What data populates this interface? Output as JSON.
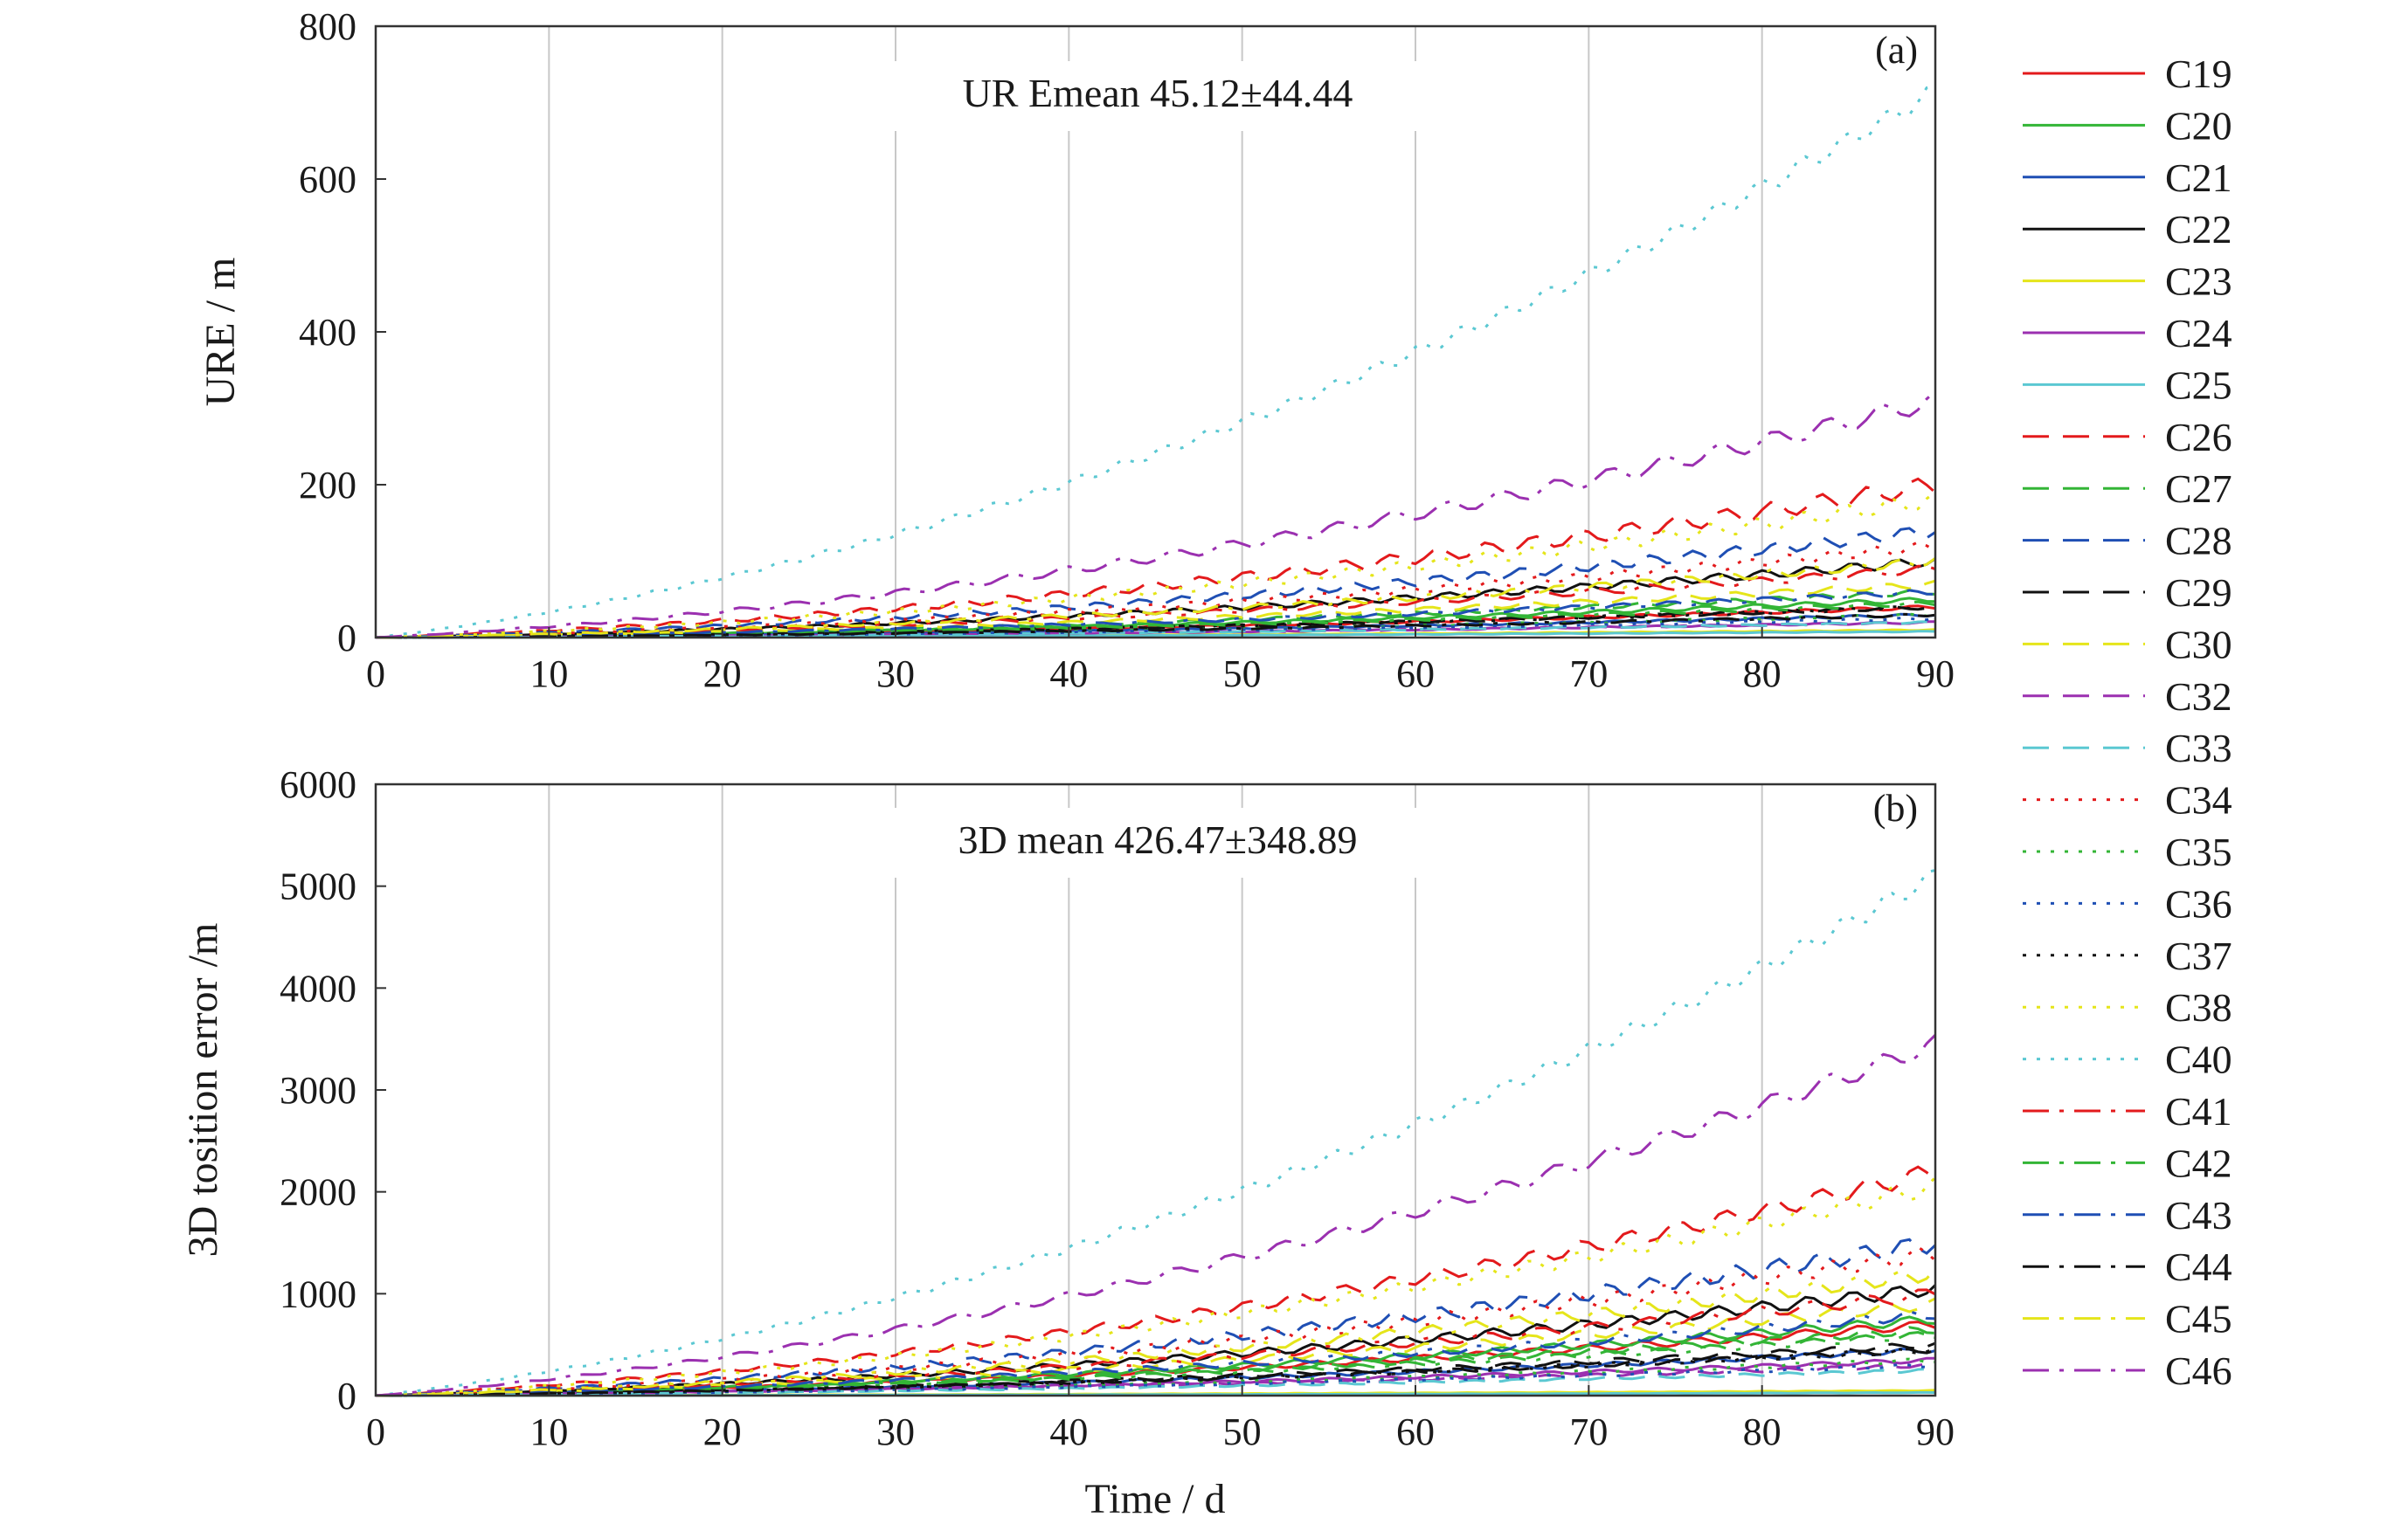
{
  "chart_data": {
    "type": "line",
    "legend_position": "right",
    "grid": true,
    "series_names": [
      "C19",
      "C20",
      "C21",
      "C22",
      "C23",
      "C24",
      "C25",
      "C26",
      "C27",
      "C28",
      "C29",
      "C30",
      "C32",
      "C33",
      "C34",
      "C35",
      "C36",
      "C37",
      "C38",
      "C40",
      "C41",
      "C42",
      "C43",
      "C44",
      "C45",
      "C46"
    ],
    "series_styles": [
      {
        "color": "#e31a1c",
        "dash": "solid"
      },
      {
        "color": "#33b536",
        "dash": "solid"
      },
      {
        "color": "#1f4fb4",
        "dash": "solid"
      },
      {
        "color": "#111111",
        "dash": "solid"
      },
      {
        "color": "#e5e51a",
        "dash": "solid"
      },
      {
        "color": "#9b30b0",
        "dash": "solid"
      },
      {
        "color": "#5bc8d2",
        "dash": "solid"
      },
      {
        "color": "#e31a1c",
        "dash": "dash"
      },
      {
        "color": "#33b536",
        "dash": "dash"
      },
      {
        "color": "#1f4fb4",
        "dash": "dash"
      },
      {
        "color": "#111111",
        "dash": "dash"
      },
      {
        "color": "#e5e51a",
        "dash": "dash"
      },
      {
        "color": "#9b30b0",
        "dash": "dash"
      },
      {
        "color": "#5bc8d2",
        "dash": "dash"
      },
      {
        "color": "#e31a1c",
        "dash": "dot"
      },
      {
        "color": "#33b536",
        "dash": "dot"
      },
      {
        "color": "#1f4fb4",
        "dash": "dot"
      },
      {
        "color": "#111111",
        "dash": "dot"
      },
      {
        "color": "#e5e51a",
        "dash": "dot"
      },
      {
        "color": "#5bc8d2",
        "dash": "dot"
      },
      {
        "color": "#e31a1c",
        "dash": "dashdot"
      },
      {
        "color": "#33b536",
        "dash": "dashdot"
      },
      {
        "color": "#1f4fb4",
        "dash": "dashdot"
      },
      {
        "color": "#111111",
        "dash": "dashdot"
      },
      {
        "color": "#e5e51a",
        "dash": "dashdot"
      },
      {
        "color": "#9b30b0",
        "dash": "dashdot"
      }
    ],
    "panels": [
      {
        "panel_label": "(a)",
        "annotation": "UR Emean 45.12±44.44",
        "ylabel": "URE / m",
        "xlabel": "",
        "xlim": [
          0,
          90
        ],
        "ylim": [
          0,
          800
        ],
        "xticks": [
          "0",
          "10",
          "20",
          "30",
          "40",
          "50",
          "60",
          "70",
          "80",
          "90"
        ],
        "yticks": [
          "0",
          "200",
          "400",
          "600",
          "800"
        ],
        "x": [
          0,
          90
        ],
        "final_values": [
          40,
          50,
          30,
          100,
          10,
          20,
          8,
          200,
          60,
          140,
          40,
          70,
          20,
          20,
          120,
          30,
          25,
          40,
          180,
          715,
          90,
          45,
          60,
          30,
          100,
          310
        ]
      },
      {
        "panel_label": "(b)",
        "annotation": "3D mean 426.47±348.89",
        "ylabel": "3D tosition error /m",
        "xlabel": "Time / d",
        "xlim": [
          0,
          90
        ],
        "ylim": [
          0,
          6000
        ],
        "xticks": [
          "0",
          "10",
          "20",
          "30",
          "40",
          "50",
          "60",
          "70",
          "80",
          "90"
        ],
        "yticks": [
          "0",
          "1000",
          "2000",
          "3000",
          "4000",
          "5000",
          "6000"
        ],
        "x": [
          0,
          90
        ],
        "final_values": [
          700,
          750,
          450,
          1050,
          50,
          350,
          30,
          2200,
          650,
          1500,
          500,
          900,
          300,
          250,
          1400,
          350,
          300,
          450,
          2050,
          5100,
          1000,
          600,
          800,
          450,
          1200,
          3450
        ]
      }
    ]
  }
}
